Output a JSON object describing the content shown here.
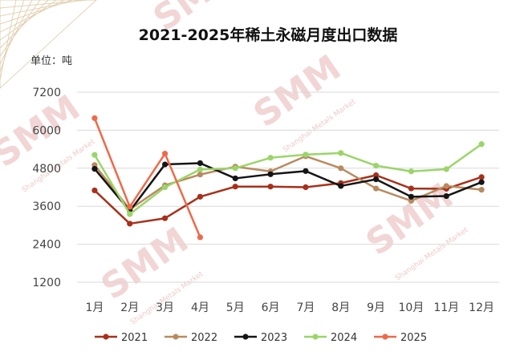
{
  "chart_data": {
    "type": "line",
    "title": "2021-2025年稀土永磁月度出口数据",
    "unit_label": "单位：吨",
    "categories": [
      "1月",
      "2月",
      "3月",
      "4月",
      "5月",
      "6月",
      "7月",
      "8月",
      "9月",
      "10月",
      "11月",
      "12月"
    ],
    "ylim": [
      1200,
      7200
    ],
    "yticks": [
      1200,
      2400,
      3600,
      4800,
      6000,
      7200
    ],
    "grid": true,
    "legend_position": "bottom",
    "series": [
      {
        "name": "2021",
        "color": "#a8301a",
        "values": [
          4100,
          3050,
          3220,
          3900,
          4220,
          4220,
          4200,
          4330,
          4580,
          4160,
          4150,
          4520
        ]
      },
      {
        "name": "2022",
        "color": "#b98a5f",
        "values": [
          4900,
          3500,
          4260,
          4600,
          4850,
          4700,
          5180,
          4800,
          4160,
          3770,
          4240,
          4120
        ]
      },
      {
        "name": "2023",
        "color": "#151515",
        "values": [
          4780,
          3450,
          4920,
          4960,
          4480,
          4610,
          4710,
          4240,
          4450,
          3900,
          3920,
          4360
        ]
      },
      {
        "name": "2024",
        "color": "#9bd56a",
        "values": [
          5220,
          3350,
          4200,
          4760,
          4800,
          5130,
          5230,
          5280,
          4880,
          4700,
          4770,
          5560
        ]
      },
      {
        "name": "2025",
        "color": "#ee6a4a",
        "values": [
          6380,
          3580,
          5260,
          2620,
          null,
          null,
          null,
          null,
          null,
          null,
          null,
          null
        ]
      }
    ]
  },
  "watermark": {
    "text": "SMM",
    "subtext": "Shanghai Metals Market"
  }
}
